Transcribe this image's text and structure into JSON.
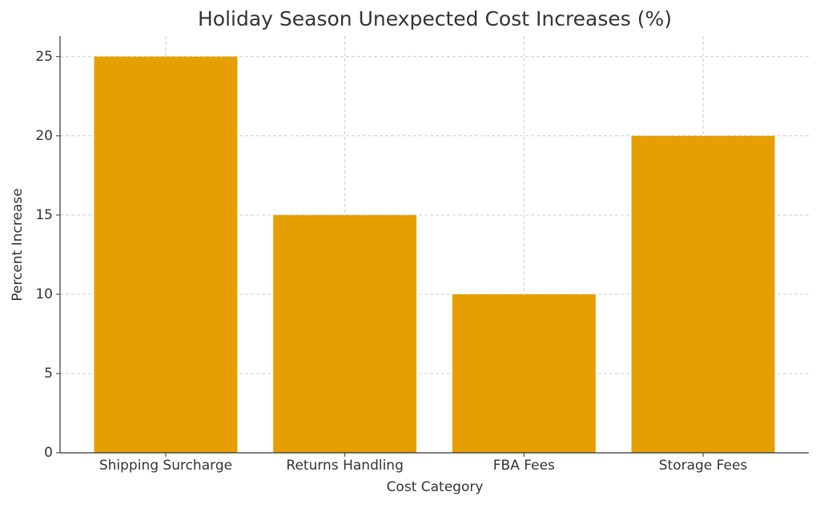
{
  "chart_data": {
    "type": "bar",
    "title": "Holiday Season Unexpected Cost Increases (%)",
    "x_label": "Cost Category",
    "y_label": "Percent Increase",
    "categories": [
      "Shipping Surcharge",
      "Returns Handling",
      "FBA Fees",
      "Storage Fees"
    ],
    "values": [
      25,
      15,
      10,
      20
    ],
    "color": "#e69f00",
    "ylim": [
      0,
      26.3
    ],
    "yticks": [
      0,
      5,
      10,
      15,
      20,
      25
    ],
    "grid": true
  }
}
